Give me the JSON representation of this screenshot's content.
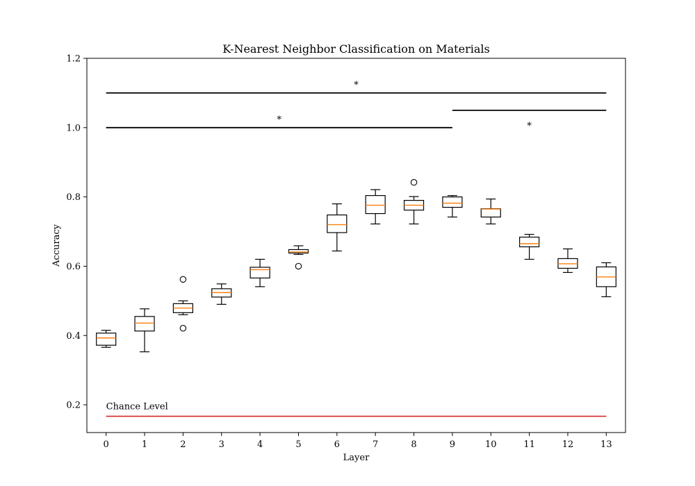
{
  "chart_data": {
    "type": "box",
    "title": "K-Nearest Neighbor Classification on Materials",
    "xlabel": "Layer",
    "ylabel": "Accuracy",
    "xlim": [
      -0.5,
      13.5
    ],
    "ylim": [
      0.12,
      1.2
    ],
    "x_ticks": [
      "0",
      "1",
      "2",
      "3",
      "4",
      "5",
      "6",
      "7",
      "8",
      "9",
      "10",
      "11",
      "12",
      "13"
    ],
    "y_ticks": [
      0.2,
      0.4,
      0.6,
      0.8,
      1.0,
      1.2
    ],
    "y_tick_labels": [
      "0.2",
      "0.4",
      "0.6",
      "0.8",
      "1.0",
      "1.2"
    ],
    "grid": false,
    "colors": {
      "box": "#000000",
      "median": "#ff7f0e",
      "chance": "#d62728"
    },
    "boxes": [
      {
        "layer": 0,
        "whislo": 0.366,
        "q1": 0.372,
        "med": 0.393,
        "q3": 0.407,
        "whishi": 0.415,
        "fliers": []
      },
      {
        "layer": 1,
        "whislo": 0.353,
        "q1": 0.413,
        "med": 0.436,
        "q3": 0.455,
        "whishi": 0.477,
        "fliers": []
      },
      {
        "layer": 2,
        "whislo": 0.46,
        "q1": 0.466,
        "med": 0.479,
        "q3": 0.492,
        "whishi": 0.5,
        "fliers": [
          0.562,
          0.421
        ]
      },
      {
        "layer": 3,
        "whislo": 0.49,
        "q1": 0.511,
        "med": 0.524,
        "q3": 0.535,
        "whishi": 0.549,
        "fliers": []
      },
      {
        "layer": 4,
        "whislo": 0.541,
        "q1": 0.566,
        "med": 0.59,
        "q3": 0.597,
        "whishi": 0.62,
        "fliers": []
      },
      {
        "layer": 5,
        "whislo": 0.634,
        "q1": 0.638,
        "med": 0.641,
        "q3": 0.648,
        "whishi": 0.659,
        "fliers": [
          0.6
        ]
      },
      {
        "layer": 6,
        "whislo": 0.644,
        "q1": 0.697,
        "med": 0.72,
        "q3": 0.748,
        "whishi": 0.78,
        "fliers": []
      },
      {
        "layer": 7,
        "whislo": 0.722,
        "q1": 0.752,
        "med": 0.776,
        "q3": 0.804,
        "whishi": 0.821,
        "fliers": []
      },
      {
        "layer": 8,
        "whislo": 0.722,
        "q1": 0.762,
        "med": 0.776,
        "q3": 0.79,
        "whishi": 0.801,
        "fliers": [
          0.842
        ]
      },
      {
        "layer": 9,
        "whislo": 0.742,
        "q1": 0.77,
        "med": 0.782,
        "q3": 0.8,
        "whishi": 0.804,
        "fliers": []
      },
      {
        "layer": 10,
        "whislo": 0.722,
        "q1": 0.742,
        "med": 0.765,
        "q3": 0.766,
        "whishi": 0.794,
        "fliers": []
      },
      {
        "layer": 11,
        "whislo": 0.62,
        "q1": 0.656,
        "med": 0.665,
        "q3": 0.684,
        "whishi": 0.692,
        "fliers": []
      },
      {
        "layer": 12,
        "whislo": 0.582,
        "q1": 0.594,
        "med": 0.607,
        "q3": 0.622,
        "whishi": 0.65,
        "fliers": []
      },
      {
        "layer": 13,
        "whislo": 0.512,
        "q1": 0.541,
        "med": 0.569,
        "q3": 0.598,
        "whishi": 0.61,
        "fliers": []
      }
    ],
    "chance_level": {
      "label": "Chance Level",
      "value": 0.167,
      "x_from": 0,
      "x_to": 13
    },
    "significance_bars": [
      {
        "x_from": 0,
        "x_to": 13,
        "y": 1.1,
        "label": "*",
        "label_x": 6.5,
        "label_y": 1.115
      },
      {
        "x_from": 0,
        "x_to": 9,
        "y": 1.0,
        "label": "*",
        "label_x": 4.5,
        "label_y": 1.015
      },
      {
        "x_from": 9,
        "x_to": 13,
        "y": 1.05,
        "label": "*",
        "label_x": 11,
        "label_y": 0.997
      }
    ]
  }
}
